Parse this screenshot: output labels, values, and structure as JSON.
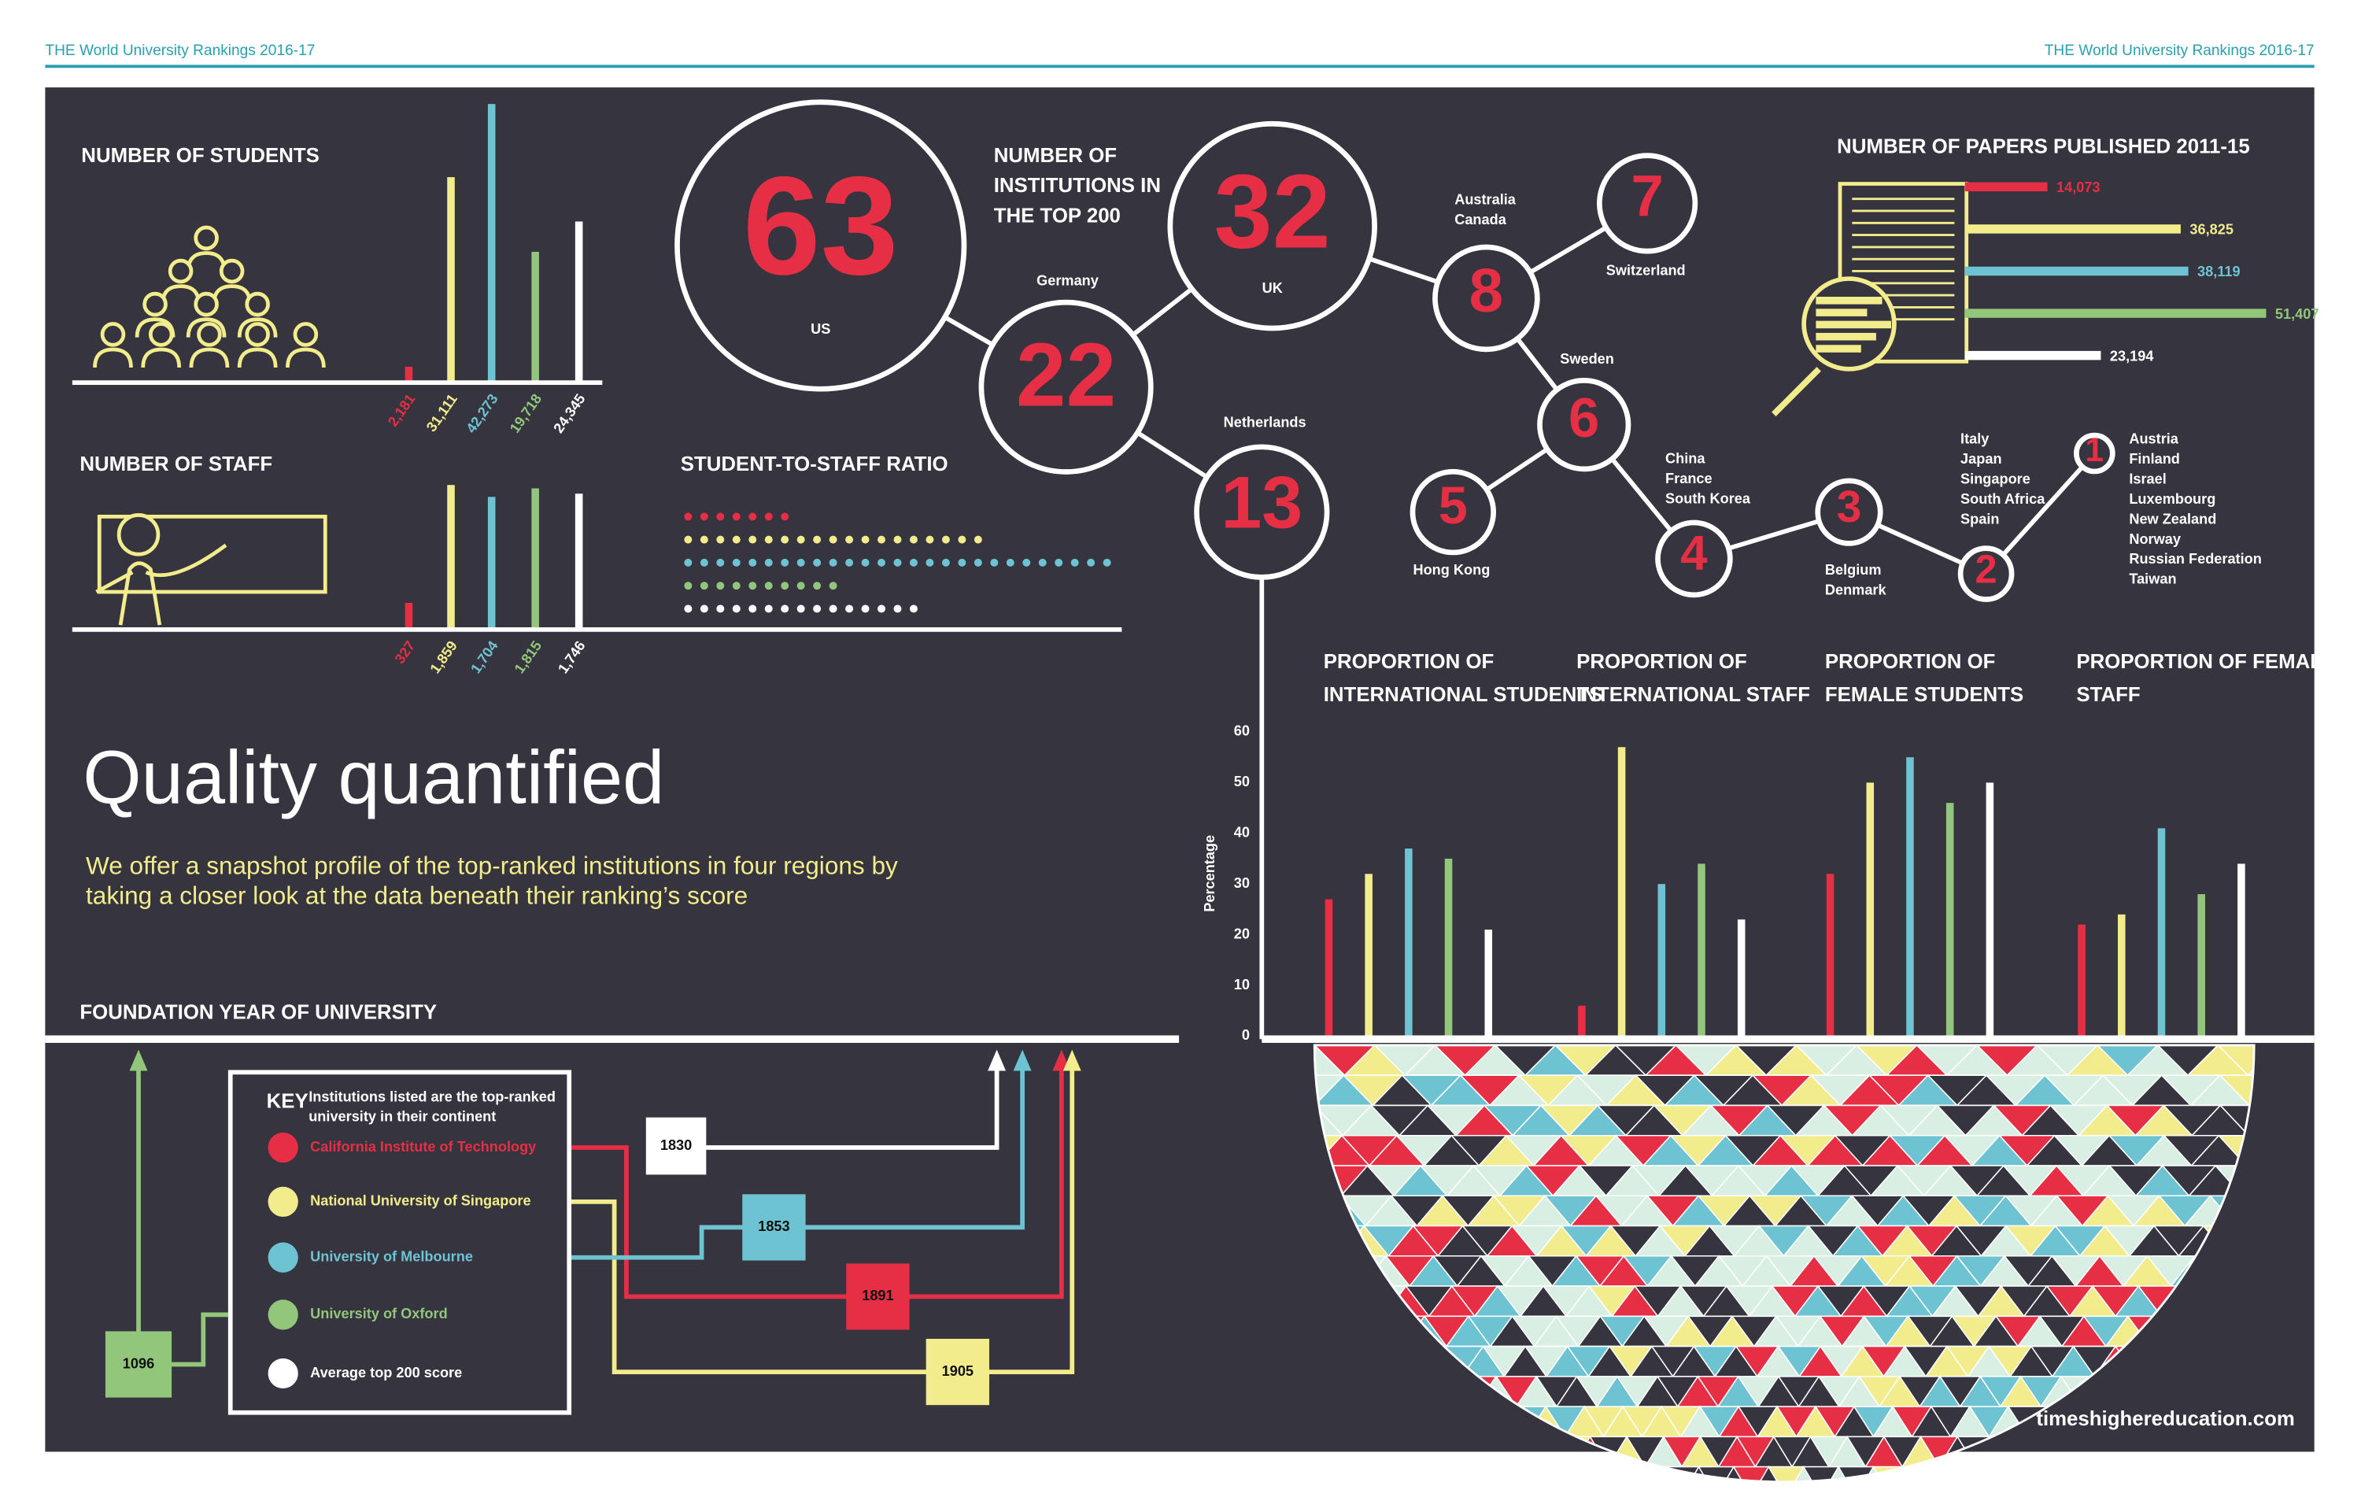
{
  "header": {
    "left": "THE World University Rankings 2016-17",
    "right": "THE World University Rankings 2016-17"
  },
  "title": "Quality quantified",
  "subtitle": [
    "We offer a snapshot profile of the top-ranked institutions in four regions by",
    "taking a closer look at the data beneath their ranking’s score"
  ],
  "series": [
    {
      "name": "California Institute of Technology",
      "color": "#e62e45"
    },
    {
      "name": "National University of Singapore",
      "color": "#f2ec8c"
    },
    {
      "name": "University of Melbourne",
      "color": "#6ec3d2"
    },
    {
      "name": "University of Oxford",
      "color": "#92c67a"
    },
    {
      "name": "Average top 200 score",
      "color": "#ffffff"
    }
  ],
  "students": {
    "title": "NUMBER OF STUDENTS",
    "values": [
      2181,
      31111,
      42273,
      19718,
      24345
    ],
    "value_labels": [
      "2,181",
      "31,111",
      "42,273",
      "19,718",
      "24,345"
    ]
  },
  "staff": {
    "title": "NUMBER OF STAFF",
    "values": [
      327,
      1859,
      1704,
      1815,
      1746
    ],
    "value_labels": [
      "327",
      "1,859",
      "1,704",
      "1,815",
      "1,746"
    ]
  },
  "ratio": {
    "title": "STUDENT-TO-STAFF RATIO",
    "values": [
      7,
      19,
      27,
      10,
      15
    ]
  },
  "institutions": {
    "title": [
      "NUMBER OF",
      "INSTITUTIONS IN",
      "THE TOP 200"
    ],
    "nodes": [
      {
        "value": 63,
        "countries": [
          "US"
        ]
      },
      {
        "value": 22,
        "countries": [
          "Germany"
        ]
      },
      {
        "value": 32,
        "countries": [
          "UK"
        ]
      },
      {
        "value": 13,
        "countries": [
          "Netherlands"
        ]
      },
      {
        "value": 8,
        "countries": [
          "Australia",
          "Canada"
        ]
      },
      {
        "value": 7,
        "countries": [
          "Switzerland"
        ]
      },
      {
        "value": 6,
        "countries": [
          "Sweden"
        ]
      },
      {
        "value": 5,
        "countries": [
          "Hong Kong"
        ]
      },
      {
        "value": 4,
        "countries": [
          "China",
          "France",
          "South Korea"
        ]
      },
      {
        "value": 3,
        "countries": [
          "Belgium",
          "Denmark"
        ]
      },
      {
        "value": 2,
        "countries": [
          "Italy",
          "Japan",
          "Singapore",
          "South Africa",
          "Spain"
        ]
      },
      {
        "value": 1,
        "countries": [
          "Austria",
          "Finland",
          "Israel",
          "Luxembourg",
          "New Zealand",
          "Norway",
          "Russian Federation",
          "Taiwan"
        ]
      }
    ]
  },
  "papers": {
    "title": "NUMBER OF PAPERS PUBLISHED 2011-15",
    "values": [
      14073,
      36825,
      38119,
      51407,
      23194
    ],
    "value_labels": [
      "14,073",
      "36,825",
      "38,119",
      "51,407",
      "23,194"
    ]
  },
  "proportions": {
    "type": "bar",
    "y_label": "Percentage",
    "ylim": [
      0,
      60
    ],
    "yticks": [
      0,
      10,
      20,
      30,
      40,
      50,
      60
    ],
    "groups": [
      {
        "title": [
          "PROPORTION OF",
          "INTERNATIONAL STUDENTS"
        ],
        "values": [
          27,
          32,
          37,
          35,
          21
        ]
      },
      {
        "title": [
          "PROPORTION OF",
          "INTERNATIONAL STAFF"
        ],
        "values": [
          6,
          57,
          30,
          34,
          23
        ]
      },
      {
        "title": [
          "PROPORTION OF",
          "FEMALE STUDENTS"
        ],
        "values": [
          32,
          50,
          55,
          46,
          50
        ]
      },
      {
        "title": [
          "PROPORTION OF FEMALE",
          "STAFF"
        ],
        "values": [
          22,
          24,
          41,
          28,
          34
        ]
      }
    ]
  },
  "foundation": {
    "title": "FOUNDATION YEAR OF UNIVERSITY",
    "values": [
      1891,
      1905,
      1853,
      1096,
      1830
    ]
  },
  "key": {
    "title": "KEY",
    "note": [
      "Institutions listed are the top-ranked",
      "university in their continent"
    ]
  },
  "footer": "timeshighereducation.com"
}
